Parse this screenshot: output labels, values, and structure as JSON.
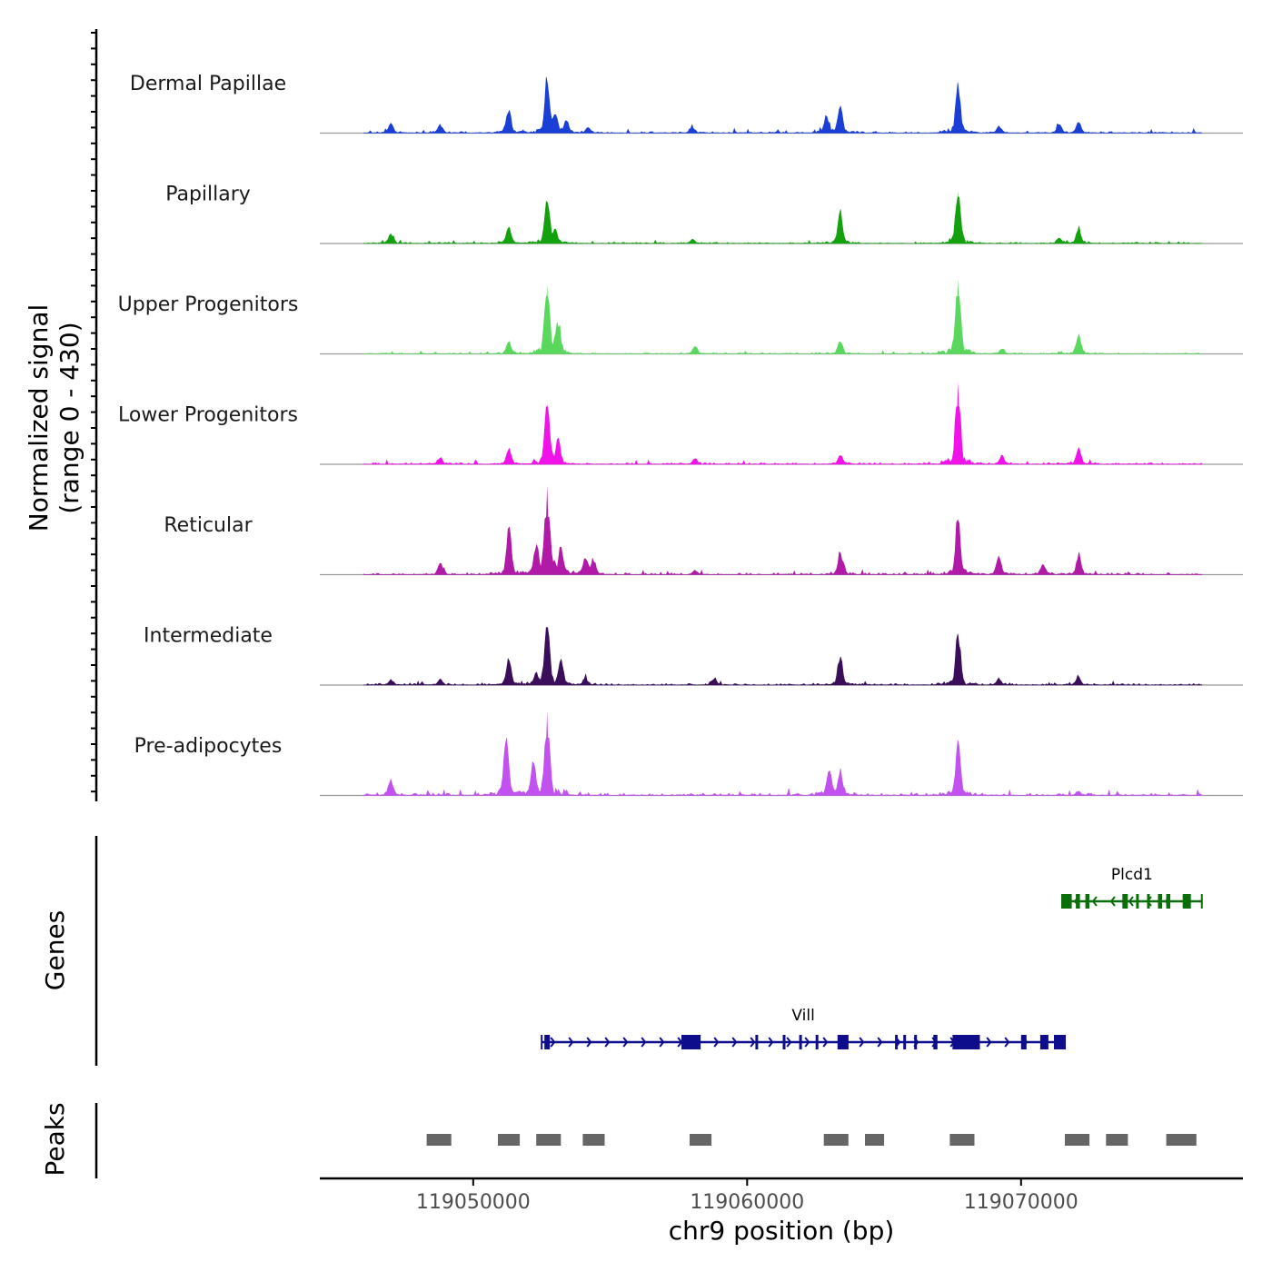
{
  "chart_data": {
    "type": "area",
    "chromosome": "chr9",
    "xlabel": "chr9 position (bp)",
    "xlim": [
      119044400,
      119078100
    ],
    "xticks": [
      119050000,
      119060000,
      119070000
    ],
    "xtick_labels": [
      "119050000",
      "119060000",
      "119070000"
    ],
    "signal_panel": {
      "ylabel_line1": "Normalized signal",
      "ylabel_line2": "(range 0 - 430)",
      "ylim": [
        0,
        430
      ],
      "signal_start": 119046000,
      "signal_end": 119076600
    },
    "tracks": [
      {
        "name": "Dermal Papillae",
        "color": "#1a3fd6",
        "noise": 6,
        "peaks": [
          {
            "pos": 119047000,
            "height": 70
          },
          {
            "pos": 119048800,
            "height": 60
          },
          {
            "pos": 119051300,
            "height": 185
          },
          {
            "pos": 119052700,
            "height": 410
          },
          {
            "pos": 119053000,
            "height": 140
          },
          {
            "pos": 119053400,
            "height": 90
          },
          {
            "pos": 119054200,
            "height": 40
          },
          {
            "pos": 119058000,
            "height": 40
          },
          {
            "pos": 119062900,
            "height": 130
          },
          {
            "pos": 119063400,
            "height": 190
          },
          {
            "pos": 119067700,
            "height": 380
          },
          {
            "pos": 119069200,
            "height": 50
          },
          {
            "pos": 119071400,
            "height": 70
          },
          {
            "pos": 119072100,
            "height": 80
          }
        ]
      },
      {
        "name": "Papillary",
        "color": "#13a10e",
        "noise": 5,
        "peaks": [
          {
            "pos": 119047000,
            "height": 70
          },
          {
            "pos": 119051300,
            "height": 140
          },
          {
            "pos": 119052700,
            "height": 350
          },
          {
            "pos": 119053000,
            "height": 90
          },
          {
            "pos": 119058000,
            "height": 30
          },
          {
            "pos": 119063400,
            "height": 240
          },
          {
            "pos": 119067700,
            "height": 430
          },
          {
            "pos": 119071400,
            "height": 40
          },
          {
            "pos": 119072100,
            "height": 110
          }
        ]
      },
      {
        "name": "Upper Progenitors",
        "color": "#5ad85e",
        "noise": 4,
        "peaks": [
          {
            "pos": 119051300,
            "height": 90
          },
          {
            "pos": 119052700,
            "height": 580
          },
          {
            "pos": 119053100,
            "height": 230
          },
          {
            "pos": 119058100,
            "height": 60
          },
          {
            "pos": 119063400,
            "height": 100
          },
          {
            "pos": 119067700,
            "height": 630
          },
          {
            "pos": 119069300,
            "height": 40
          },
          {
            "pos": 119072100,
            "height": 140
          }
        ]
      },
      {
        "name": "Lower Progenitors",
        "color": "#f012e8",
        "noise": 6,
        "peaks": [
          {
            "pos": 119048800,
            "height": 50
          },
          {
            "pos": 119051300,
            "height": 120
          },
          {
            "pos": 119052700,
            "height": 510
          },
          {
            "pos": 119053100,
            "height": 180
          },
          {
            "pos": 119058100,
            "height": 40
          },
          {
            "pos": 119063400,
            "height": 70
          },
          {
            "pos": 119067700,
            "height": 690
          },
          {
            "pos": 119069300,
            "height": 60
          },
          {
            "pos": 119072100,
            "height": 120
          }
        ]
      },
      {
        "name": "Reticular",
        "color": "#b01aa6",
        "noise": 7,
        "peaks": [
          {
            "pos": 119048800,
            "height": 80
          },
          {
            "pos": 119051300,
            "height": 370
          },
          {
            "pos": 119052300,
            "height": 200
          },
          {
            "pos": 119052700,
            "height": 750
          },
          {
            "pos": 119053200,
            "height": 220
          },
          {
            "pos": 119054100,
            "height": 130
          },
          {
            "pos": 119054400,
            "height": 100
          },
          {
            "pos": 119058100,
            "height": 30
          },
          {
            "pos": 119063400,
            "height": 170
          },
          {
            "pos": 119067700,
            "height": 450
          },
          {
            "pos": 119069200,
            "height": 140
          },
          {
            "pos": 119070800,
            "height": 80
          },
          {
            "pos": 119072100,
            "height": 140
          }
        ]
      },
      {
        "name": "Intermediate",
        "color": "#3a0e5a",
        "noise": 6,
        "peaks": [
          {
            "pos": 119047000,
            "height": 40
          },
          {
            "pos": 119048800,
            "height": 40
          },
          {
            "pos": 119051300,
            "height": 210
          },
          {
            "pos": 119052300,
            "height": 80
          },
          {
            "pos": 119052700,
            "height": 480
          },
          {
            "pos": 119053200,
            "height": 190
          },
          {
            "pos": 119054100,
            "height": 50
          },
          {
            "pos": 119058800,
            "height": 50
          },
          {
            "pos": 119063400,
            "height": 220
          },
          {
            "pos": 119067700,
            "height": 420
          },
          {
            "pos": 119069200,
            "height": 50
          },
          {
            "pos": 119072100,
            "height": 60
          }
        ]
      },
      {
        "name": "Pre-adipocytes",
        "color": "#c252f0",
        "noise": 9,
        "peaks": [
          {
            "pos": 119047000,
            "height": 110
          },
          {
            "pos": 119051200,
            "height": 470
          },
          {
            "pos": 119052200,
            "height": 240
          },
          {
            "pos": 119052700,
            "height": 710
          },
          {
            "pos": 119063000,
            "height": 200
          },
          {
            "pos": 119063400,
            "height": 170
          },
          {
            "pos": 119067700,
            "height": 410
          },
          {
            "pos": 119072100,
            "height": 30
          }
        ]
      }
    ],
    "genes_panel": {
      "ylabel": "Genes",
      "genes": [
        {
          "name": "Plcd1",
          "strand": "-",
          "color": "#0a6e0a",
          "start": 119071500,
          "end": 119076600,
          "row": 1,
          "exons": [
            [
              119071500,
              119071850
            ],
            [
              119072000,
              119072150
            ],
            [
              119072350,
              119072500
            ],
            [
              119073700,
              119073900
            ],
            [
              119074200,
              119074300
            ],
            [
              119074600,
              119074700
            ],
            [
              119075000,
              119075150
            ],
            [
              119075300,
              119075450
            ],
            [
              119075900,
              119076200
            ]
          ]
        },
        {
          "name": "Vill",
          "strand": "+",
          "color": "#0e0e8c",
          "start": 119052500,
          "end": 119071600,
          "row": 2,
          "exons": [
            [
              119052600,
              119052800
            ],
            [
              119057600,
              119058300
            ],
            [
              119060300,
              119060400
            ],
            [
              119061300,
              119061400
            ],
            [
              119061900,
              119062000
            ],
            [
              119062500,
              119062600
            ],
            [
              119063300,
              119063700
            ],
            [
              119065400,
              119065500
            ],
            [
              119065700,
              119065800
            ],
            [
              119066100,
              119066200
            ],
            [
              119066800,
              119066950
            ],
            [
              119067500,
              119068500
            ],
            [
              119070000,
              119070200
            ],
            [
              119070700,
              119071000
            ],
            [
              119071200,
              119071600
            ]
          ]
        }
      ]
    },
    "peaks_panel": {
      "ylabel": "Peaks",
      "color": "#666666",
      "regions": [
        [
          119048300,
          119049200
        ],
        [
          119050900,
          119051700
        ],
        [
          119052300,
          119053200
        ],
        [
          119054000,
          119054800
        ],
        [
          119057900,
          119058700
        ],
        [
          119062800,
          119063700
        ],
        [
          119064300,
          119065000
        ],
        [
          119067400,
          119068300
        ],
        [
          119071600,
          119072500
        ],
        [
          119073100,
          119073900
        ],
        [
          119075300,
          119076400
        ]
      ]
    }
  }
}
